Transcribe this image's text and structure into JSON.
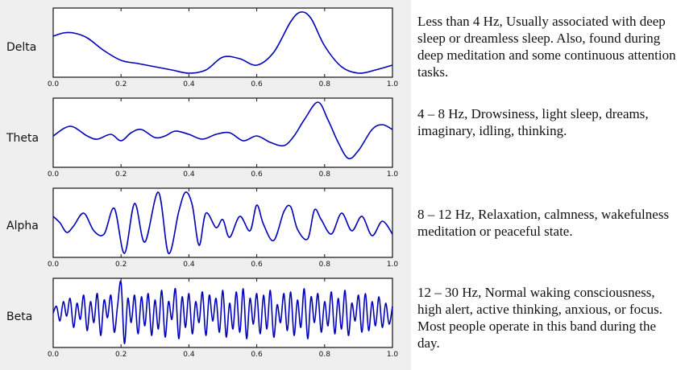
{
  "chart_data": [
    {
      "type": "line",
      "band_label": "Delta",
      "description": "Less than 4 Hz, Usually associated with deep sleep or dreamless sleep. Also, found during deep meditation and some continuous attention tasks.",
      "xlim": [
        0.0,
        1.0
      ],
      "ylim": [
        -1.0,
        1.0
      ],
      "xtick_labels": [
        "0.0",
        "0.2",
        "0.4",
        "0.6",
        "0.8",
        "1.0"
      ],
      "x": [
        0.0,
        0.03,
        0.06,
        0.1,
        0.15,
        0.2,
        0.25,
        0.3,
        0.35,
        0.4,
        0.45,
        0.5,
        0.55,
        0.6,
        0.65,
        0.7,
        0.73,
        0.76,
        0.8,
        0.85,
        0.9,
        0.95,
        1.0
      ],
      "y": [
        0.2,
        0.3,
        0.3,
        0.15,
        -0.25,
        -0.55,
        -0.65,
        -0.75,
        -0.85,
        -0.95,
        -0.85,
        -0.45,
        -0.5,
        -0.7,
        -0.3,
        0.65,
        0.95,
        0.75,
        -0.1,
        -0.75,
        -0.95,
        -0.85,
        -0.7
      ],
      "color": "#0000b8",
      "grid": false
    },
    {
      "type": "line",
      "band_label": "Theta",
      "description": "4 – 8 Hz, Drowsiness, light sleep, dreams, imaginary, idling, thinking.",
      "xlim": [
        0.0,
        1.0
      ],
      "ylim": [
        -1.0,
        1.0
      ],
      "xtick_labels": [
        "0.0",
        "0.2",
        "0.4",
        "0.6",
        "0.8",
        "1.0"
      ],
      "x": [
        0.0,
        0.05,
        0.1,
        0.13,
        0.17,
        0.2,
        0.23,
        0.26,
        0.3,
        0.33,
        0.36,
        0.4,
        0.44,
        0.48,
        0.52,
        0.56,
        0.6,
        0.64,
        0.68,
        0.71,
        0.74,
        0.78,
        0.81,
        0.84,
        0.87,
        0.9,
        0.94,
        0.97,
        1.0
      ],
      "y": [
        -0.1,
        0.2,
        -0.1,
        -0.2,
        -0.05,
        -0.25,
        0.0,
        0.1,
        -0.15,
        -0.1,
        0.05,
        -0.05,
        -0.2,
        -0.05,
        0.0,
        -0.25,
        -0.1,
        -0.3,
        -0.4,
        -0.1,
        0.4,
        0.95,
        0.4,
        -0.3,
        -0.8,
        -0.55,
        0.1,
        0.25,
        0.1
      ],
      "color": "#0000b8",
      "grid": false
    },
    {
      "type": "line",
      "band_label": "Alpha",
      "description": "8 – 12 Hz, Relaxation, calmness, wakefulness meditation or peaceful state.",
      "xlim": [
        0.0,
        1.0
      ],
      "ylim": [
        -1.0,
        1.0
      ],
      "xtick_labels": [
        "0.0",
        "0.2",
        "0.4",
        "0.6",
        "0.8",
        "1.0"
      ],
      "x": [
        0.0,
        0.02,
        0.04,
        0.06,
        0.09,
        0.12,
        0.15,
        0.18,
        0.21,
        0.24,
        0.27,
        0.31,
        0.34,
        0.37,
        0.39,
        0.41,
        0.43,
        0.45,
        0.48,
        0.5,
        0.52,
        0.55,
        0.58,
        0.6,
        0.62,
        0.65,
        0.68,
        0.7,
        0.72,
        0.75,
        0.77,
        0.79,
        0.82,
        0.85,
        0.88,
        0.91,
        0.94,
        0.97,
        1.0
      ],
      "y": [
        0.2,
        0.0,
        -0.3,
        -0.1,
        0.3,
        -0.25,
        -0.35,
        0.45,
        -0.95,
        0.6,
        -0.6,
        0.95,
        -0.95,
        0.35,
        0.95,
        0.55,
        -0.7,
        0.3,
        -0.15,
        0.1,
        -0.45,
        0.2,
        -0.25,
        0.55,
        -0.05,
        -0.55,
        0.35,
        0.5,
        -0.2,
        -0.5,
        0.4,
        0.1,
        -0.35,
        0.3,
        -0.25,
        0.2,
        -0.4,
        0.05,
        -0.35
      ],
      "color": "#0000b8",
      "grid": false
    },
    {
      "type": "line",
      "band_label": "Beta",
      "description": "12 – 30 Hz, Normal waking consciousness, high alert, active thinking, anxious, or focus. Most people operate in this band during the day.",
      "xlim": [
        0.0,
        1.0
      ],
      "ylim": [
        -1.0,
        1.0
      ],
      "xtick_labels": [
        "0.0",
        "0.2",
        "0.4",
        "0.6",
        "0.8",
        "1.0"
      ],
      "x": [
        0.0,
        0.01,
        0.02,
        0.03,
        0.04,
        0.05,
        0.06,
        0.07,
        0.08,
        0.09,
        0.1,
        0.11,
        0.12,
        0.13,
        0.14,
        0.15,
        0.16,
        0.17,
        0.18,
        0.19,
        0.2,
        0.21,
        0.22,
        0.23,
        0.24,
        0.25,
        0.26,
        0.27,
        0.28,
        0.29,
        0.3,
        0.31,
        0.32,
        0.33,
        0.34,
        0.35,
        0.36,
        0.37,
        0.38,
        0.39,
        0.4,
        0.41,
        0.42,
        0.43,
        0.44,
        0.45,
        0.46,
        0.47,
        0.48,
        0.49,
        0.5,
        0.51,
        0.52,
        0.53,
        0.54,
        0.55,
        0.56,
        0.57,
        0.58,
        0.59,
        0.6,
        0.61,
        0.62,
        0.63,
        0.64,
        0.65,
        0.66,
        0.67,
        0.68,
        0.69,
        0.7,
        0.71,
        0.72,
        0.73,
        0.74,
        0.75,
        0.76,
        0.77,
        0.78,
        0.79,
        0.8,
        0.81,
        0.82,
        0.83,
        0.84,
        0.85,
        0.86,
        0.87,
        0.88,
        0.89,
        0.9,
        0.91,
        0.92,
        0.93,
        0.94,
        0.95,
        0.96,
        0.97,
        0.98,
        0.99,
        1.0
      ],
      "y": [
        0.0,
        0.2,
        -0.25,
        0.35,
        -0.1,
        0.45,
        -0.45,
        0.3,
        -0.2,
        0.55,
        -0.55,
        0.35,
        -0.3,
        0.6,
        -0.7,
        0.4,
        -0.15,
        0.55,
        -0.6,
        0.25,
        0.95,
        -0.95,
        0.45,
        -0.3,
        0.55,
        -0.65,
        0.5,
        -0.4,
        0.6,
        -0.7,
        0.4,
        -0.5,
        0.7,
        -0.75,
        0.35,
        -0.2,
        0.75,
        -0.8,
        0.5,
        -0.45,
        0.6,
        -0.65,
        0.35,
        -0.3,
        0.65,
        -0.7,
        0.55,
        -0.25,
        0.45,
        -0.6,
        0.7,
        -0.75,
        0.3,
        -0.5,
        0.65,
        -0.6,
        0.75,
        -0.8,
        0.45,
        -0.35,
        0.6,
        -0.65,
        0.55,
        -0.5,
        0.7,
        -0.75,
        0.25,
        -0.3,
        0.6,
        -0.55,
        0.65,
        -0.7,
        0.4,
        -0.45,
        0.75,
        -0.8,
        0.5,
        -0.3,
        0.6,
        -0.6,
        0.35,
        -0.4,
        0.65,
        -0.65,
        0.45,
        -0.5,
        0.7,
        -0.7,
        0.3,
        -0.25,
        0.55,
        -0.6,
        0.6,
        -0.55,
        0.35,
        -0.4,
        0.5,
        -0.45,
        0.3,
        -0.35,
        0.2
      ],
      "color": "#0000b8",
      "grid": false
    }
  ]
}
